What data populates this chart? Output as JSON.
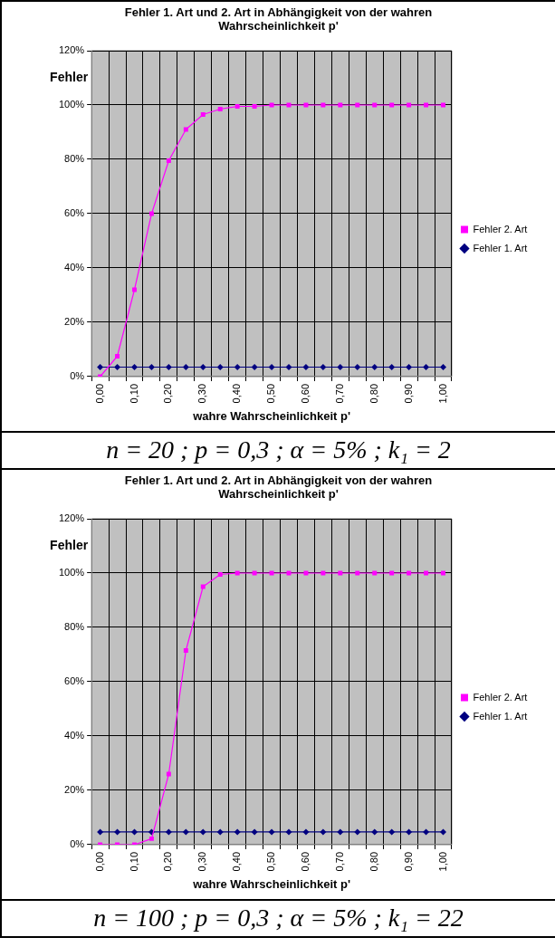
{
  "chart_data": [
    {
      "type": "line",
      "title": "Fehler 1. Art und 2. Art in Abhängigkeit von der wahren Wahrscheinlichkeit p'",
      "xlabel": "wahre Wahrscheinlichkeit p'",
      "ylabel": "Fehler",
      "categories": [
        "0,00",
        null,
        "0,10",
        null,
        "0,20",
        null,
        "0,30",
        null,
        "0,40",
        null,
        "0,50",
        null,
        "0,60",
        null,
        "0,70",
        null,
        "0,80",
        null,
        "0,90",
        null,
        "1,00"
      ],
      "series": [
        {
          "name": "Fehler 2. Art",
          "color": "#ff00ff",
          "marker": "square",
          "values": [
            0,
            7.5,
            32,
            60,
            79.5,
            91,
            96.5,
            98.5,
            99.5,
            99.5,
            100,
            100,
            100,
            100,
            100,
            100,
            100,
            100,
            100,
            100,
            100
          ]
        },
        {
          "name": "Fehler 1. Art",
          "color": "#000080",
          "marker": "diamond",
          "values": [
            3.5,
            3.5,
            3.5,
            3.5,
            3.5,
            3.5,
            3.5,
            3.5,
            3.5,
            3.5,
            3.5,
            3.5,
            3.5,
            3.5,
            3.5,
            3.5,
            3.5,
            3.5,
            3.5,
            3.5,
            3.5
          ]
        }
      ],
      "ylim": [
        0,
        120
      ],
      "yticks": [
        {
          "value": 0,
          "label": "0%"
        },
        {
          "value": 20,
          "label": "20%"
        },
        {
          "value": 40,
          "label": "40%"
        },
        {
          "value": 60,
          "label": "60%"
        },
        {
          "value": 80,
          "label": "80%"
        },
        {
          "value": 100,
          "label": "100%"
        },
        {
          "value": 120,
          "label": "120%"
        }
      ],
      "grid": true,
      "legend": "right",
      "line_style": "solid",
      "annotations": [
        "n = 20 ;  p = 0,3 ;  α = 5% ;  k₁ = 2"
      ]
    },
    {
      "type": "line",
      "title": "Fehler 1. Art und 2. Art in Abhängigkeit von der wahren Wahrscheinlichkeit p'",
      "xlabel": "wahre Wahrscheinlichkeit p'",
      "ylabel": "Fehler",
      "categories": [
        "0,00",
        null,
        "0,10",
        null,
        "0,20",
        null,
        "0,30",
        null,
        "0,40",
        null,
        "0,50",
        null,
        "0,60",
        null,
        "0,70",
        null,
        "0,80",
        null,
        "0,90",
        null,
        "1,00"
      ],
      "series": [
        {
          "name": "Fehler 2. Art",
          "color": "#ff00ff",
          "marker": "square",
          "values": [
            0,
            0,
            0,
            2.2,
            26,
            71.5,
            95,
            99.5,
            100,
            100,
            100,
            100,
            100,
            100,
            100,
            100,
            100,
            100,
            100,
            100,
            100
          ]
        },
        {
          "name": "Fehler 1. Art",
          "color": "#000080",
          "marker": "diamond",
          "values": [
            4.7,
            4.7,
            4.7,
            4.7,
            4.7,
            4.7,
            4.7,
            4.7,
            4.7,
            4.7,
            4.7,
            4.7,
            4.7,
            4.7,
            4.7,
            4.7,
            4.7,
            4.7,
            4.7,
            4.7,
            4.7
          ]
        }
      ],
      "ylim": [
        0,
        120
      ],
      "yticks": [
        {
          "value": 0,
          "label": "0%"
        },
        {
          "value": 20,
          "label": "20%"
        },
        {
          "value": 40,
          "label": "40%"
        },
        {
          "value": 60,
          "label": "60%"
        },
        {
          "value": 80,
          "label": "80%"
        },
        {
          "value": 100,
          "label": "100%"
        },
        {
          "value": 120,
          "label": "120%"
        }
      ],
      "grid": true,
      "legend": "right",
      "line_style": "solid",
      "annotations": [
        "n = 100 ;  p = 0,3 ;  α = 5% ;  k₁ = 22"
      ]
    }
  ]
}
